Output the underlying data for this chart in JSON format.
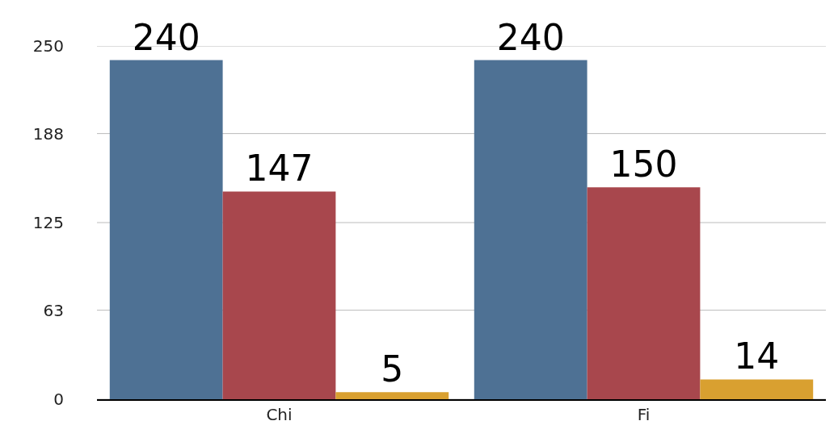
{
  "chart_data": {
    "type": "bar",
    "categories": [
      "Chi",
      "Fi"
    ],
    "series": [
      {
        "color": "#4e7194",
        "values": [
          240,
          240
        ]
      },
      {
        "color": "#a8474d",
        "values": [
          147,
          150
        ]
      },
      {
        "color": "#d9a030",
        "values": [
          5,
          14
        ]
      }
    ],
    "ylim": [
      0,
      250
    ],
    "yticks": [
      0,
      63,
      125,
      188,
      250
    ],
    "grid": "y",
    "data_labels": true
  }
}
